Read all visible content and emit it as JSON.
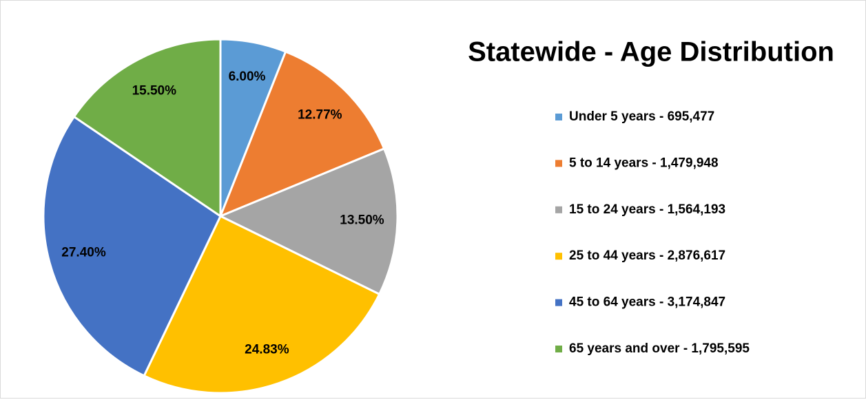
{
  "chart_data": {
    "type": "pie",
    "title": "Statewide - Age Distribution",
    "categories": [
      "Under 5 years - 695,477",
      "5 to 14 years - 1,479,948",
      "15 to 24 years - 1,564,193",
      "25 to 44 years - 2,876,617",
      "45 to 64 years - 3,174,847",
      "65 years and over - 1,795,595"
    ],
    "values": [
      6.0,
      12.77,
      13.5,
      24.83,
      27.4,
      15.5
    ],
    "value_labels": [
      "6.00%",
      "12.77%",
      "13.50%",
      "24.83%",
      "27.40%",
      "15.50%"
    ],
    "colors": [
      "#5b9bd5",
      "#ed7d31",
      "#a5a5a5",
      "#ffc000",
      "#4472c4",
      "#70ad47"
    ],
    "legend": "right"
  }
}
